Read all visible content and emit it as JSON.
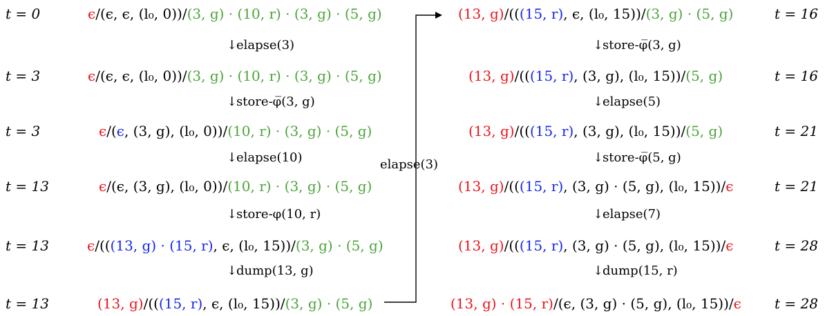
{
  "palette": {
    "red": "#e8141b",
    "green": "#4ca33b",
    "blue": "#1626e8",
    "black": "#000000"
  },
  "left_column": {
    "states": [
      {
        "time": "t = 0",
        "expr": [
          [
            "r",
            "ϵ"
          ],
          [
            "k",
            "/(ϵ, ϵ, (l₀, 0))/"
          ],
          [
            "g",
            "(3, g) · (10, r) · (3, g) · (5, g)"
          ]
        ]
      },
      {
        "time": "t = 3",
        "expr": [
          [
            "r",
            "ϵ"
          ],
          [
            "k",
            "/(ϵ, ϵ, (l₀, 0))/"
          ],
          [
            "g",
            "(3, g) · (10, r) · (3, g) · (5, g)"
          ]
        ]
      },
      {
        "time": "t = 3",
        "expr": [
          [
            "r",
            "ϵ"
          ],
          [
            "k",
            "/("
          ],
          [
            "b",
            "ϵ"
          ],
          [
            "k",
            ", (3, g), (l₀, 0))/"
          ],
          [
            "g",
            "(10, r) · (3, g) · (5, g)"
          ]
        ]
      },
      {
        "time": "t = 13",
        "expr": [
          [
            "r",
            "ϵ"
          ],
          [
            "k",
            "/(ϵ, (3, g), (l₀, 0))/"
          ],
          [
            "g",
            "(10, r) · (3, g) · (5, g)"
          ]
        ]
      },
      {
        "time": "t = 13",
        "expr": [
          [
            "r",
            "ϵ"
          ],
          [
            "k",
            "/(("
          ],
          [
            "b",
            "(13, g) · (15, r)"
          ],
          [
            "k",
            ", ϵ, (l₀, 15))/"
          ],
          [
            "g",
            "(3, g) · (5, g)"
          ]
        ]
      },
      {
        "time": "t = 13",
        "expr": [
          [
            "r",
            "(13, g)"
          ],
          [
            "k",
            "/(("
          ],
          [
            "b",
            "(15, r)"
          ],
          [
            "k",
            ", ϵ, (l₀, 15))/"
          ],
          [
            "g",
            "(3, g) · (5, g)"
          ]
        ]
      }
    ],
    "transitions": [
      "elapse(3)",
      "store-φ̅(3, g)",
      "elapse(10)",
      "store-φ(10, r)",
      "dump(13, g)"
    ]
  },
  "connector": {
    "label": "elapse(3)"
  },
  "right_column": {
    "states": [
      {
        "time": "t = 16",
        "expr": [
          [
            "r",
            "(13, g)"
          ],
          [
            "k",
            "/(("
          ],
          [
            "b",
            "(15, r)"
          ],
          [
            "k",
            ", ϵ, (l₀, 15))/"
          ],
          [
            "g",
            "(3, g) · (5, g)"
          ]
        ]
      },
      {
        "time": "t = 16",
        "expr": [
          [
            "r",
            "(13, g)"
          ],
          [
            "k",
            "/(("
          ],
          [
            "b",
            "(15, r)"
          ],
          [
            "k",
            ", (3, g), (l₀, 15))/"
          ],
          [
            "g",
            "(5, g)"
          ]
        ]
      },
      {
        "time": "t = 21",
        "expr": [
          [
            "r",
            "(13, g)"
          ],
          [
            "k",
            "/(("
          ],
          [
            "b",
            "(15, r)"
          ],
          [
            "k",
            ", (3, g), (l₀, 15))/"
          ],
          [
            "g",
            "(5, g)"
          ]
        ]
      },
      {
        "time": "t = 21",
        "expr": [
          [
            "r",
            "(13, g)"
          ],
          [
            "k",
            "/(("
          ],
          [
            "b",
            "(15, r)"
          ],
          [
            "k",
            ", (3, g) · (5, g), (l₀, 15))/"
          ],
          [
            "r",
            "ϵ"
          ]
        ]
      },
      {
        "time": "t = 28",
        "expr": [
          [
            "r",
            "(13, g)"
          ],
          [
            "k",
            "/(("
          ],
          [
            "b",
            "(15, r)"
          ],
          [
            "k",
            ", (3, g) · (5, g), (l₀, 15))/"
          ],
          [
            "r",
            "ϵ"
          ]
        ]
      },
      {
        "time": "t = 28",
        "expr": [
          [
            "r",
            "(13, g) · (15, r)"
          ],
          [
            "k",
            "/(ϵ, (3, g) · (5, g), (l₀, 15))/"
          ],
          [
            "r",
            "ϵ"
          ]
        ]
      }
    ],
    "transitions": [
      "store-φ̅(3, g)",
      "elapse(5)",
      "store-φ̅(5, g)",
      "elapse(7)",
      "dump(15, r)"
    ]
  }
}
